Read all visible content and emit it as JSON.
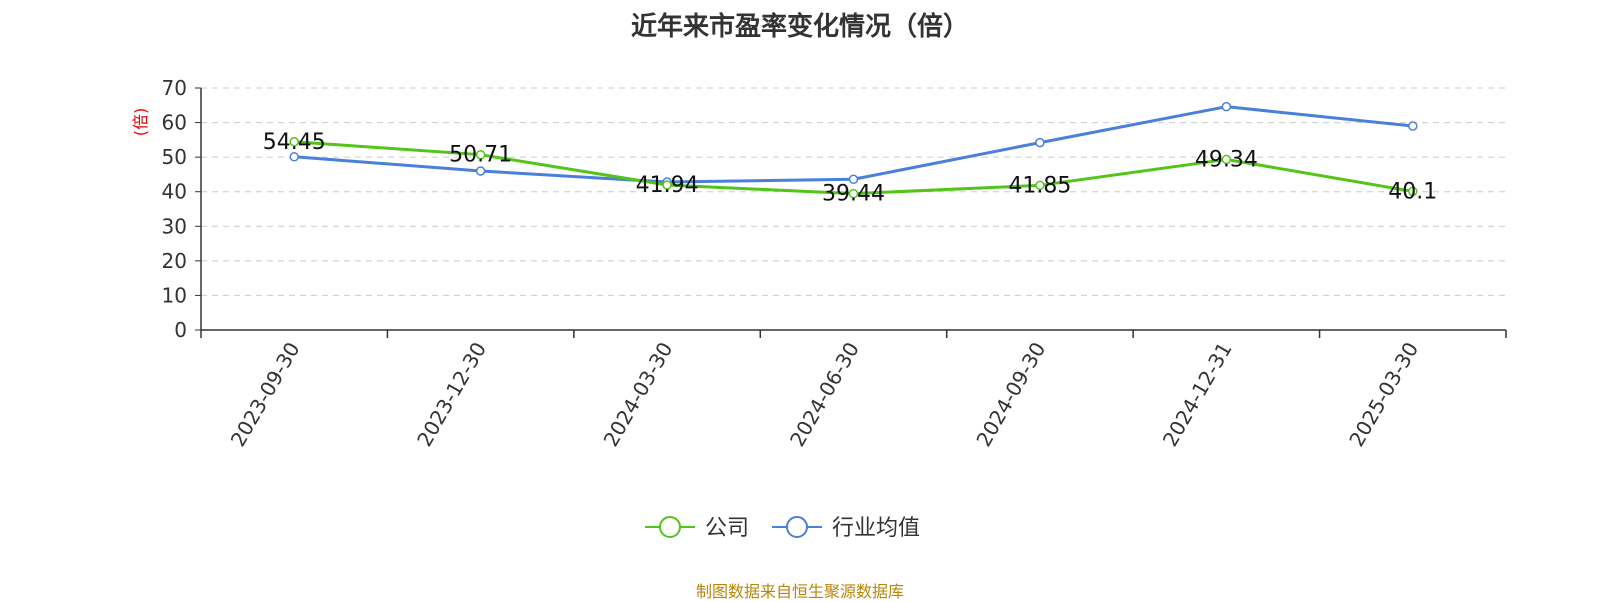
{
  "chart_data": {
    "type": "line",
    "title": "近年来市盈率变化情况（倍）",
    "ylabel": "(倍)",
    "xlabel": "",
    "categories": [
      "2023-09-30",
      "2023-12-30",
      "2024-03-30",
      "2024-06-30",
      "2024-09-30",
      "2024-12-31",
      "2025-03-30"
    ],
    "ylim": [
      0,
      70
    ],
    "yticks": [
      0,
      10,
      20,
      30,
      40,
      50,
      60,
      70
    ],
    "grid": true,
    "legend_position": "bottom-center",
    "series": [
      {
        "name": "公司",
        "color": "#52c41a",
        "values": [
          54.45,
          50.71,
          41.94,
          39.44,
          41.85,
          49.34,
          40.1
        ],
        "data_labels": [
          "54.45",
          "50.71",
          "41.94",
          "39.44",
          "41.85",
          "49.34",
          "40.1"
        ]
      },
      {
        "name": "行业均值",
        "color": "#4a7fdb",
        "values": [
          50.1,
          46.0,
          42.8,
          43.6,
          54.2,
          64.6,
          59.0
        ]
      }
    ]
  },
  "source_note": "制图数据来自恒生聚源数据库",
  "colors": {
    "axis_label": "#e60000",
    "text": "#333333",
    "grid": "#cccccc",
    "source": "#b8860b"
  }
}
